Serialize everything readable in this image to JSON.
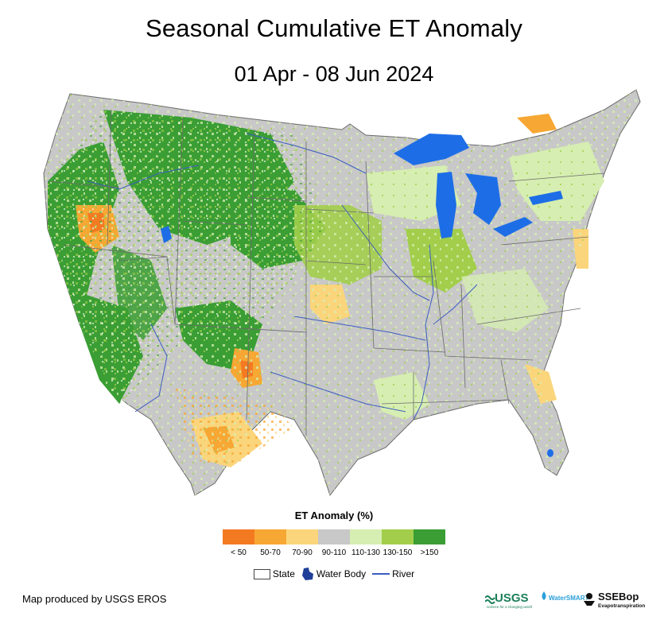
{
  "title": "Seasonal Cumulative ET Anomaly",
  "subtitle": "01 Apr - 08 Jun 2024",
  "legend": {
    "title": "ET Anomaly (%)",
    "classes": [
      {
        "label": "< 50",
        "color": "#f47a22"
      },
      {
        "label": "50-70",
        "color": "#f7a733"
      },
      {
        "label": "70-90",
        "color": "#fbd57b"
      },
      {
        "label": "90-110",
        "color": "#c8c8c8"
      },
      {
        "label": "110-130",
        "color": "#d6eeb1"
      },
      {
        "label": "130-150",
        "color": "#a2ce4b"
      },
      {
        "label": ">150",
        "color": "#3a9e34"
      }
    ],
    "symbols": {
      "state": "State",
      "water_body": "Water Body",
      "river": "River"
    }
  },
  "credit": "Map produced by USGS EROS",
  "logos": {
    "usgs": "USGS",
    "usgs_tagline": "science for a changing world",
    "watersmart": "WaterSMART",
    "ssebop": "SSEBop",
    "ssebop_sub": "Evapotranspiration"
  },
  "colors": {
    "water": "#1d6ee6",
    "river": "#3b5dbf",
    "state_line": "#6b6b6b"
  }
}
